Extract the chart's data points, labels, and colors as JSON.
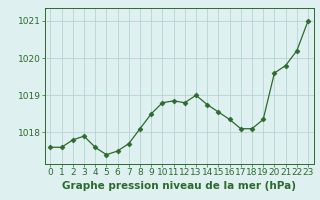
{
  "hours": [
    0,
    1,
    2,
    3,
    4,
    5,
    6,
    7,
    8,
    9,
    10,
    11,
    12,
    13,
    14,
    15,
    16,
    17,
    18,
    19,
    20,
    21,
    22,
    23
  ],
  "pressure": [
    1017.6,
    1017.6,
    1017.8,
    1017.9,
    1017.6,
    1017.4,
    1017.5,
    1017.7,
    1018.1,
    1018.5,
    1018.8,
    1018.85,
    1018.8,
    1019.0,
    1018.75,
    1018.55,
    1018.35,
    1018.1,
    1018.1,
    1018.35,
    1019.6,
    1019.8,
    1020.2,
    1021.0
  ],
  "line_color": "#2d6a2d",
  "marker": "D",
  "marker_size": 2.5,
  "bg_color": "#dff0f0",
  "grid_color": "#aecece",
  "axis_color": "#2d6a2d",
  "ylabel_ticks": [
    1018,
    1019,
    1020,
    1021
  ],
  "ylim": [
    1017.15,
    1021.35
  ],
  "xlim": [
    -0.5,
    23.5
  ],
  "xlabel": "Graphe pression niveau de la mer (hPa)",
  "xlabel_fontsize": 7.5,
  "tick_fontsize": 6.5,
  "title": ""
}
